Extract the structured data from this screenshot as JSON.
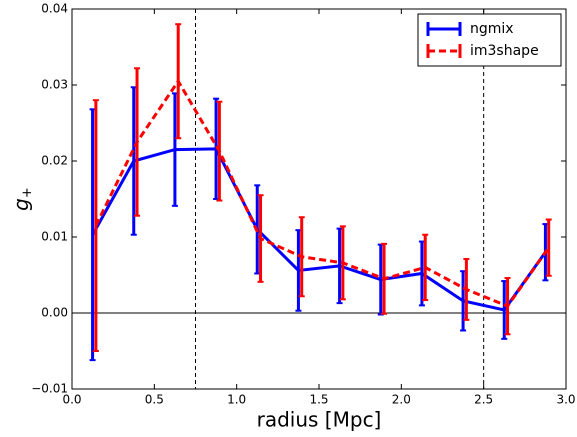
{
  "chart_data": {
    "type": "line",
    "xlabel": "radius [Mpc]",
    "ylabel": "g",
    "ylabel_sub": "+",
    "xlim": [
      0,
      3.0
    ],
    "ylim": [
      -0.01,
      0.04
    ],
    "xticks": [
      {
        "value": 0,
        "label": "0.0"
      },
      0.5,
      {
        "value": 1,
        "label": "1.0"
      },
      1.5,
      {
        "value": 2,
        "label": "2.0"
      },
      2.5,
      {
        "value": 3,
        "label": "3.0"
      }
    ],
    "yticks": [
      {
        "value": -0.01,
        "label": "−0.01"
      },
      {
        "value": 0,
        "label": "0.00"
      },
      0.01,
      0.02,
      0.03,
      0.04
    ],
    "vlines": [
      0.75,
      2.5
    ],
    "hline": 0,
    "legend": "upper right",
    "series": [
      {
        "name": "ngmix",
        "color": "#0000ff",
        "dashed": false,
        "x": [
          0.125,
          0.375,
          0.625,
          0.875,
          1.125,
          1.375,
          1.625,
          1.875,
          2.125,
          2.375,
          2.625,
          2.875
        ],
        "values": [
          0.0103,
          0.02,
          0.0215,
          0.0216,
          0.011,
          0.0056,
          0.0062,
          0.0044,
          0.0052,
          0.0016,
          0.0004,
          0.008
        ],
        "errors": [
          0.0165,
          0.0097,
          0.0074,
          0.0066,
          0.0058,
          0.0053,
          0.0049,
          0.0046,
          0.0042,
          0.0039,
          0.0038,
          0.0037
        ]
      },
      {
        "name": "im3shape",
        "color": "#ff0000",
        "dashed": true,
        "x": [
          0.145,
          0.395,
          0.645,
          0.895,
          1.145,
          1.395,
          1.645,
          1.895,
          2.145,
          2.395,
          2.645,
          2.895
        ],
        "values": [
          0.0115,
          0.0225,
          0.0305,
          0.0213,
          0.0098,
          0.0074,
          0.0066,
          0.0045,
          0.006,
          0.0031,
          0.0009,
          0.0086
        ],
        "errors": [
          0.0165,
          0.0097,
          0.0075,
          0.0065,
          0.0057,
          0.0052,
          0.0048,
          0.0046,
          0.0043,
          0.004,
          0.0037,
          0.0037
        ]
      }
    ]
  }
}
